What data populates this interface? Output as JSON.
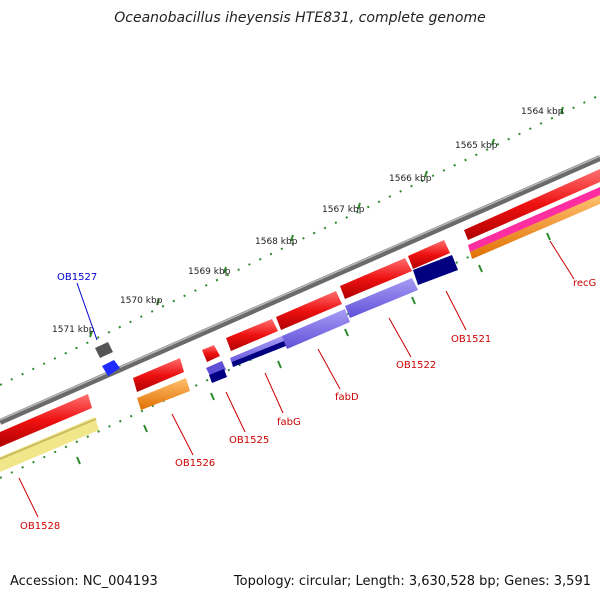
{
  "title": "Oceanobacillus iheyensis HTE831, complete genome",
  "footer": {
    "accession": "Accession: NC_004193",
    "summary": "Topology: circular; Length: 3,630,528 bp; Genes: 3,591"
  },
  "kbp_marks": [
    "1564 kbp",
    "1565 kbp",
    "1566 kbp",
    "1567 kbp",
    "1568 kbp",
    "1569 kbp",
    "1570 kbp",
    "1571 kbp"
  ],
  "genes": [
    {
      "label": "OB1527",
      "color": "#0000cc"
    },
    {
      "label": "OB1528",
      "color": "#cc0000"
    },
    {
      "label": "OB1526",
      "color": "#cc0000"
    },
    {
      "label": "OB1525",
      "color": "#cc0000"
    },
    {
      "label": "fabG",
      "color": "#cc0000"
    },
    {
      "label": "fabD",
      "color": "#cc0000"
    },
    {
      "label": "OB1522",
      "color": "#cc0000"
    },
    {
      "label": "OB1521",
      "color": "#cc0000"
    },
    {
      "label": "recG",
      "color": "#cc0000"
    }
  ],
  "colors": {
    "backbone": "#808080",
    "cds": "#ee1111",
    "cds_light": "#ff6666",
    "rna_gold": "#ff8c00",
    "rna_yellow": "#f2e68a",
    "blastx_dark": "#000080",
    "blastx_light": "#7b68ee",
    "pink": "#ff2ea0",
    "tick": "#2e8b2e"
  }
}
